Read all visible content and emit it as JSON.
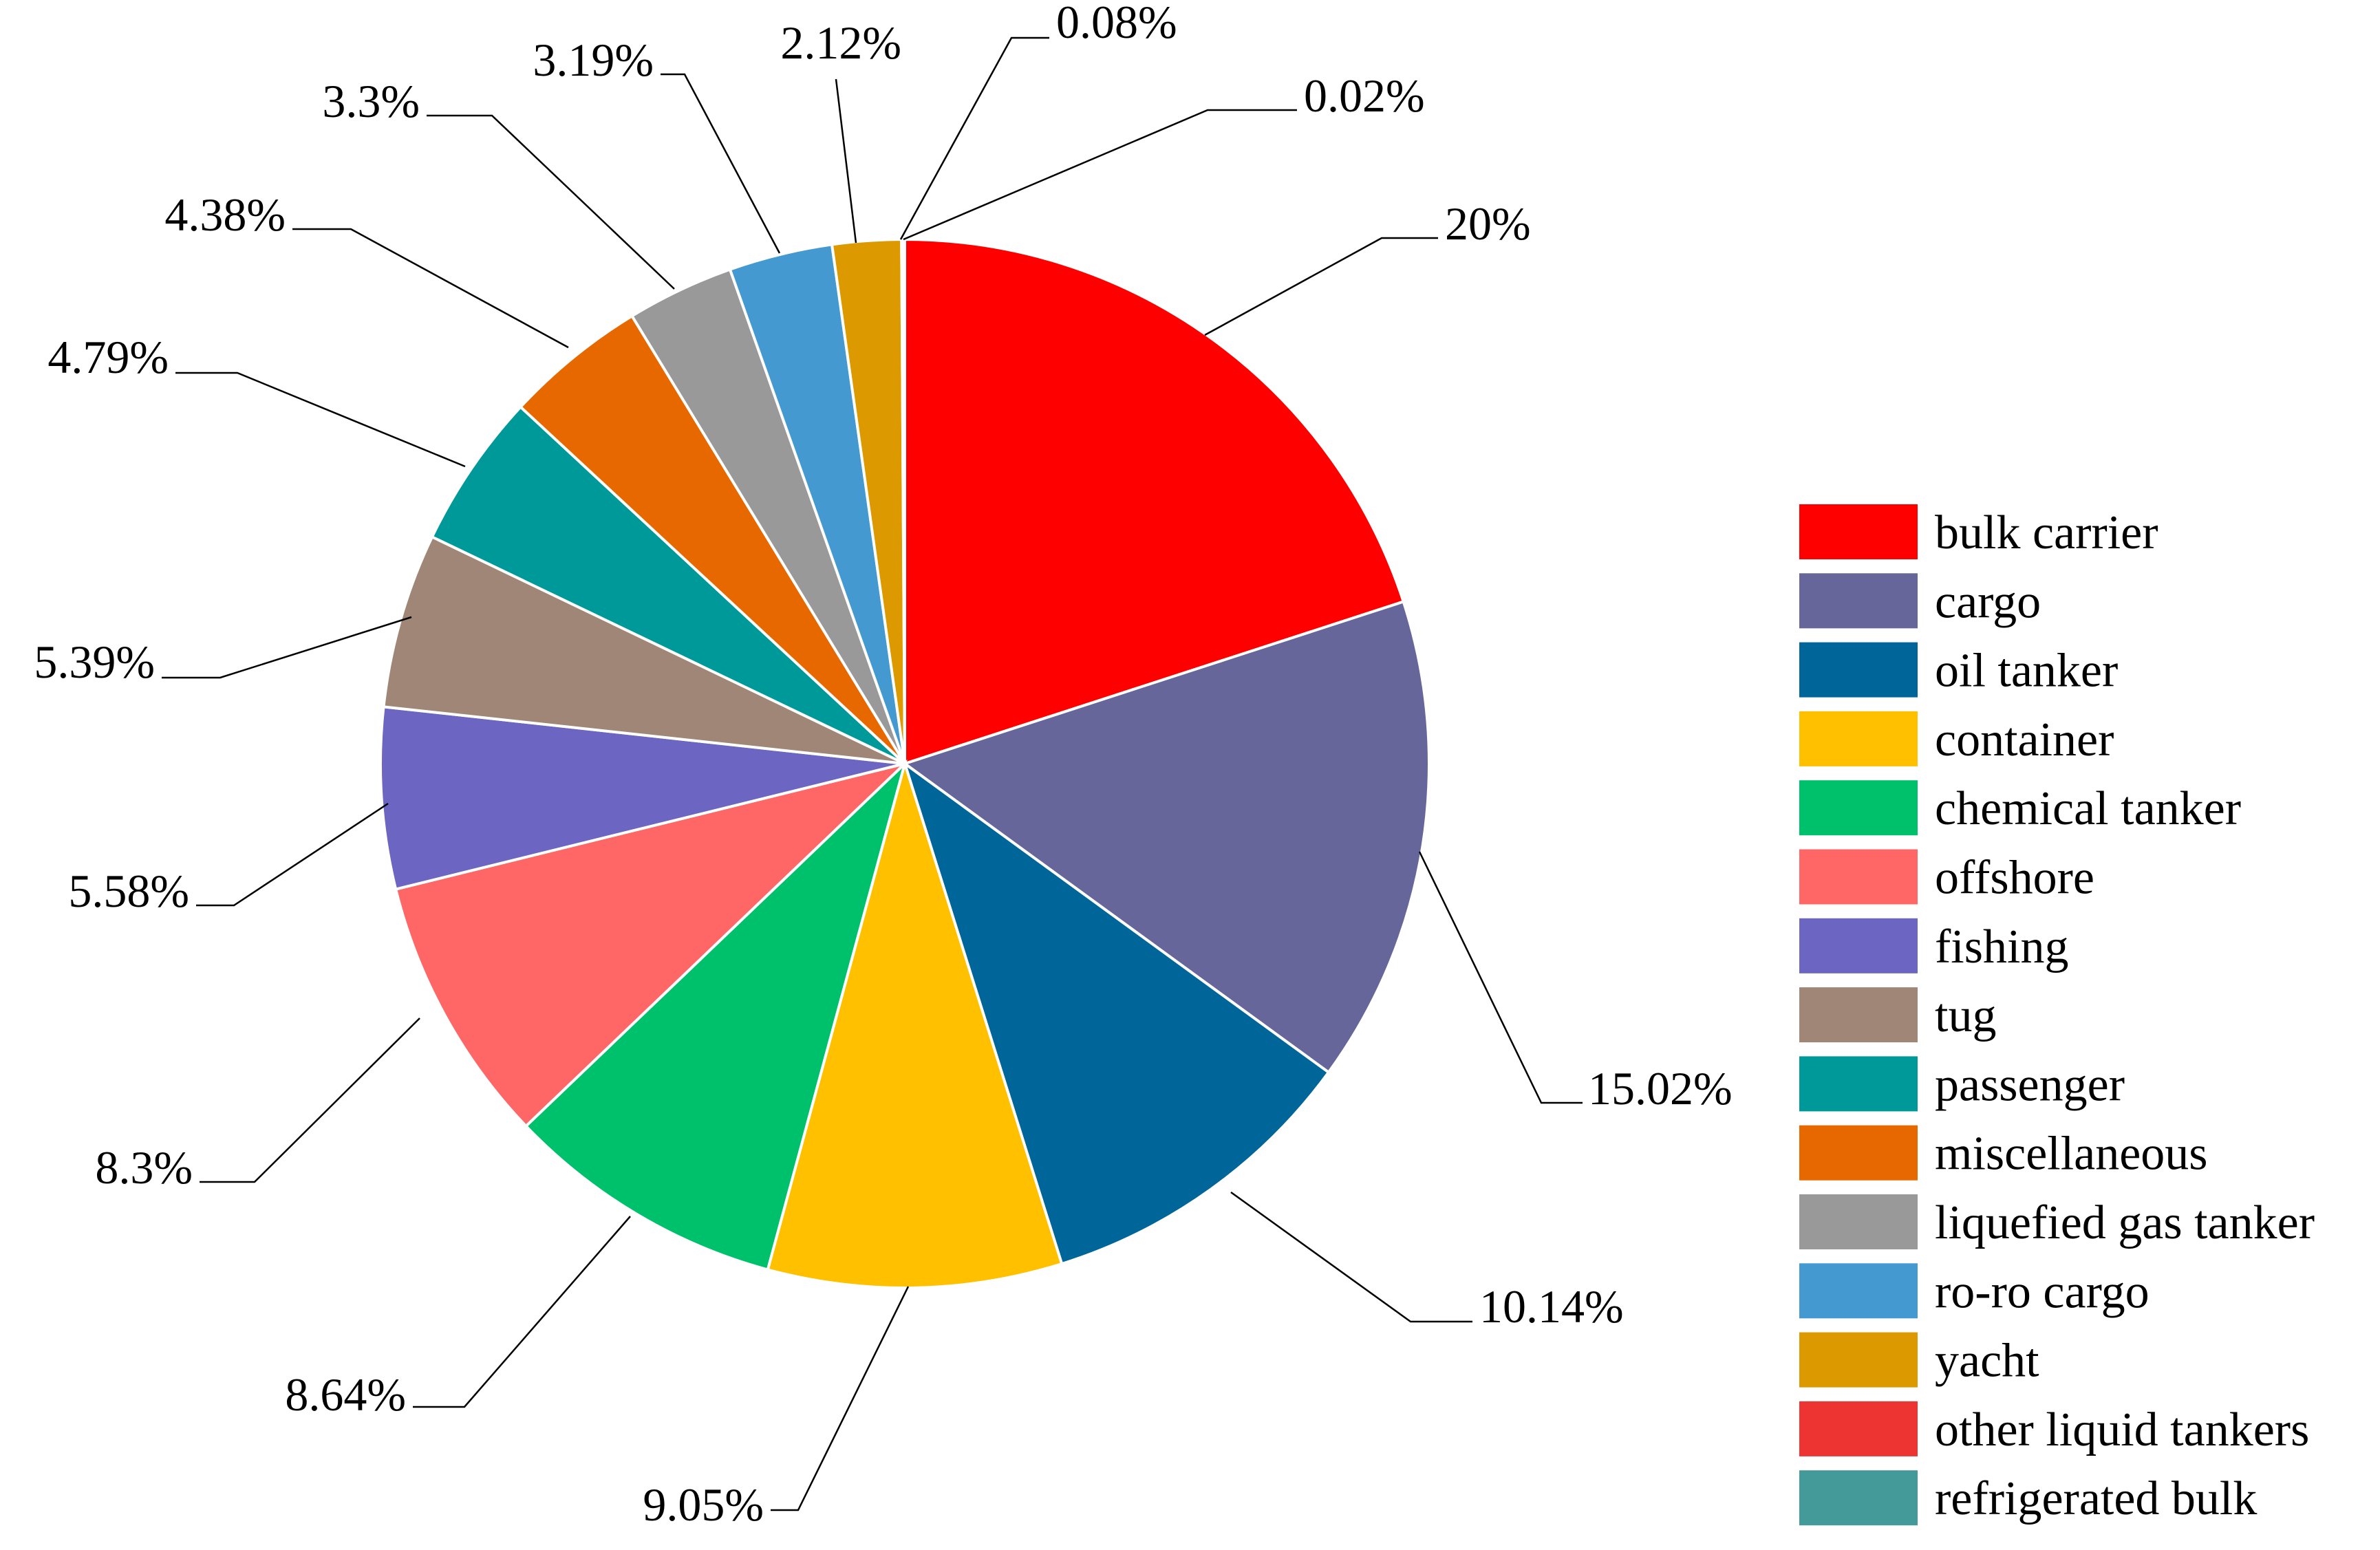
{
  "chart_data": {
    "type": "pie",
    "start_angle_deg": 0,
    "direction": "clockwise",
    "slices": [
      {
        "name": "bulk carrier",
        "value": 20,
        "label": "20%",
        "color": "#ff0000"
      },
      {
        "name": "cargo",
        "value": 15.02,
        "label": "15.02%",
        "color": "#66669a"
      },
      {
        "name": "oil tanker",
        "value": 10.14,
        "label": "10.14%",
        "color": "#006699"
      },
      {
        "name": "container",
        "value": 9.05,
        "label": "9.05%",
        "color": "#ffc000"
      },
      {
        "name": "chemical tanker",
        "value": 8.64,
        "label": "8.64%",
        "color": "#00c16b"
      },
      {
        "name": "offshore",
        "value": 8.3,
        "label": "8.3%",
        "color": "#ff6666"
      },
      {
        "name": "fishing",
        "value": 5.58,
        "label": "5.58%",
        "color": "#6c66c2"
      },
      {
        "name": "tug",
        "value": 5.39,
        "label": "5.39%",
        "color": "#a08676"
      },
      {
        "name": "passenger",
        "value": 4.79,
        "label": "4.79%",
        "color": "#009999"
      },
      {
        "name": "miscellaneous",
        "value": 4.38,
        "label": "4.38%",
        "color": "#e86800"
      },
      {
        "name": "liquefied gas tanker",
        "value": 3.3,
        "label": "3.3%",
        "color": "#999999"
      },
      {
        "name": "ro-ro cargo",
        "value": 3.19,
        "label": "3.19%",
        "color": "#4499d0"
      },
      {
        "name": "yacht",
        "value": 2.12,
        "label": "2.12%",
        "color": "#dd9900"
      },
      {
        "name": "other liquid tankers",
        "value": 0.08,
        "label": "0.08%",
        "color": "#ee3333"
      },
      {
        "name": "refrigerated bulk",
        "value": 0.02,
        "label": "0.02%",
        "color": "#449999"
      }
    ],
    "legend": {
      "position": "right"
    }
  }
}
